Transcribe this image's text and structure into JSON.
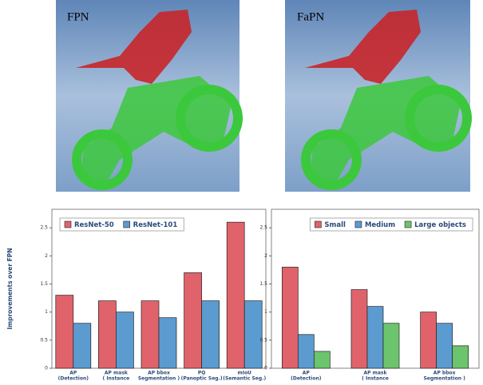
{
  "images": [
    {
      "label": "FPN"
    },
    {
      "label": "FaPN"
    }
  ],
  "chart_data": [
    {
      "type": "bar",
      "ylabel": "Improvements over FPN",
      "categories": [
        [
          "AP",
          "(Detection)"
        ],
        [
          "AP mask",
          "(   Instance"
        ],
        [
          "AP bbox",
          "Segmentation   )"
        ],
        [
          "PQ",
          "(Panoptic Seg.)"
        ],
        [
          "mIoU",
          "(Semantic Seg.)"
        ]
      ],
      "series": [
        {
          "name": "ResNet-50",
          "color": "#e0636b",
          "values": [
            1.3,
            1.2,
            1.2,
            1.7,
            2.6
          ]
        },
        {
          "name": "ResNet-101",
          "color": "#5b9bd0",
          "values": [
            0.8,
            1.0,
            0.9,
            1.2,
            1.2
          ]
        }
      ],
      "ylim": [
        0,
        2.83
      ],
      "yticks": [
        0,
        0.5,
        1,
        1.5,
        2,
        2.5
      ],
      "legend": "top-left"
    },
    {
      "type": "bar",
      "categories": [
        [
          "AP",
          "(Detection)"
        ],
        [
          "AP mask",
          "(   Instance"
        ],
        [
          "AP bbox",
          "Segmentation   )"
        ]
      ],
      "series": [
        {
          "name": "Small",
          "color": "#e0636b",
          "values": [
            1.8,
            1.4,
            1.0
          ]
        },
        {
          "name": "Medium",
          "color": "#5b9bd0",
          "values": [
            0.6,
            1.1,
            0.8
          ]
        },
        {
          "name": "Large objects",
          "color": "#6cc46c",
          "values": [
            0.3,
            0.8,
            0.4
          ]
        }
      ],
      "ylim": [
        0,
        2.83
      ],
      "yticks": [
        0,
        0.5,
        1,
        1.5,
        2,
        2.5
      ],
      "legend": "top-right"
    }
  ]
}
